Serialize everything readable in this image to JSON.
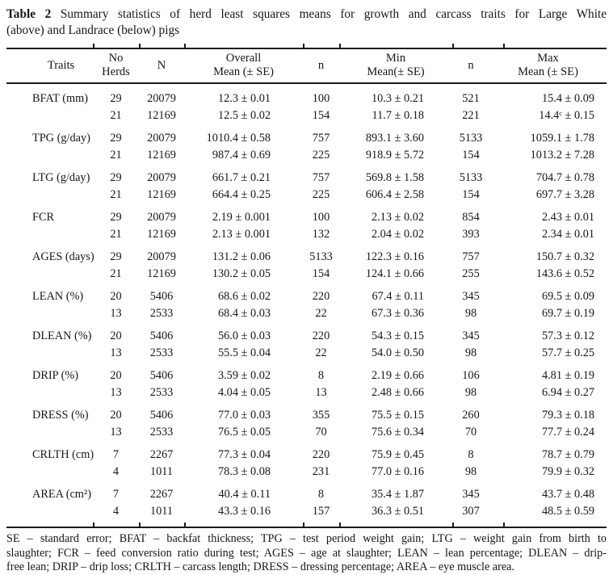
{
  "title": {
    "line1_bold": "Table 2",
    "line1_rest": " Summary statistics of herd least squares means for growth and carcass traits for Large White",
    "line2": "(above) and Landrace (below) pigs"
  },
  "table": {
    "headers": {
      "traits": "Traits",
      "no_herds_line1": "No",
      "no_herds_line2": "Herds",
      "n_total": "N",
      "overall_line1": "Overall",
      "overall_line2": "Mean (± SE)",
      "n_min": "n",
      "min_line1": "Min",
      "min_line2": "Mean(± SE)",
      "n_max": "n",
      "max_line1": "Max",
      "max_line2": "Mean (± SE)"
    },
    "blocks": [
      {
        "trait": "BFAT (mm)",
        "rows": [
          {
            "no_herds": "29",
            "n": "20079",
            "overall": "12.3 ± 0.01",
            "n_min": "100",
            "min": "10.3 ± 0.21",
            "n_max": "521",
            "max": "15.4 ± 0.09"
          },
          {
            "no_herds": "21",
            "n": "12169",
            "overall": "12.5 ± 0.02",
            "n_min": "154",
            "min": "11.7 ± 0.18",
            "n_max": "221",
            "max": "14.4ᶜ ± 0.15"
          }
        ]
      },
      {
        "trait": "TPG (g/day)",
        "rows": [
          {
            "no_herds": "29",
            "n": "20079",
            "overall": "1010.4 ± 0.58",
            "n_min": "757",
            "min": "893.1 ± 3.60",
            "n_max": "5133",
            "max": "1059.1 ± 1.78"
          },
          {
            "no_herds": "21",
            "n": "12169",
            "overall": "987.4 ± 0.69",
            "n_min": "225",
            "min": "918.9 ± 5.72",
            "n_max": "154",
            "max": "1013.2 ± 7.28"
          }
        ]
      },
      {
        "trait": "LTG (g/day)",
        "rows": [
          {
            "no_herds": "29",
            "n": "20079",
            "overall": "661.7 ± 0.21",
            "n_min": "757",
            "min": "569.8 ± 1.58",
            "n_max": "5133",
            "max": "704.7 ± 0.78"
          },
          {
            "no_herds": "21",
            "n": "12169",
            "overall": "664.4 ± 0.25",
            "n_min": "225",
            "min": "606.4 ± 2.58",
            "n_max": "154",
            "max": "697.7 ± 3.28"
          }
        ]
      },
      {
        "trait": "FCR",
        "rows": [
          {
            "no_herds": "29",
            "n": "20079",
            "overall": "2.19 ± 0.001",
            "n_min": "100",
            "min": "2.13 ± 0.02",
            "n_max": "854",
            "max": "2.43 ± 0.01"
          },
          {
            "no_herds": "21",
            "n": "12169",
            "overall": "2.13 ± 0.001",
            "n_min": "132",
            "min": "2.04 ± 0.02",
            "n_max": "393",
            "max": "2.34 ± 0.01"
          }
        ]
      },
      {
        "trait": "AGES (days)",
        "rows": [
          {
            "no_herds": "29",
            "n": "20079",
            "overall": "131.2 ± 0.06",
            "n_min": "5133",
            "min": "122.3 ± 0.16",
            "n_max": "757",
            "max": "150.7 ± 0.32"
          },
          {
            "no_herds": "21",
            "n": "12169",
            "overall": "130.2 ± 0.05",
            "n_min": "154",
            "min": "124.1 ± 0.66",
            "n_max": "255",
            "max": "143.6 ± 0.52"
          }
        ]
      },
      {
        "trait": "LEAN (%)",
        "rows": [
          {
            "no_herds": "20",
            "n": "5406",
            "overall": "68.6 ± 0.02",
            "n_min": "220",
            "min": "67.4 ± 0.11",
            "n_max": "345",
            "max": "69.5 ± 0.09"
          },
          {
            "no_herds": "13",
            "n": "2533",
            "overall": "68.4 ± 0.03",
            "n_min": "22",
            "min": "67.3 ± 0.36",
            "n_max": "98",
            "max": "69.7 ± 0.19"
          }
        ]
      },
      {
        "trait": "DLEAN (%)",
        "rows": [
          {
            "no_herds": "20",
            "n": "5406",
            "overall": "56.0 ± 0.03",
            "n_min": "220",
            "min": "54.3 ± 0.15",
            "n_max": "345",
            "max": "57.3 ± 0.12"
          },
          {
            "no_herds": "13",
            "n": "2533",
            "overall": "55.5 ± 0.04",
            "n_min": "22",
            "min": "54.0 ± 0.50",
            "n_max": "98",
            "max": "57.7 ± 0.25"
          }
        ]
      },
      {
        "trait": "DRIP (%)",
        "rows": [
          {
            "no_herds": "20",
            "n": "5406",
            "overall": "3.59 ± 0.02",
            "n_min": "8",
            "min": "2.19 ± 0.66",
            "n_max": "106",
            "max": "4.81 ± 0.19"
          },
          {
            "no_herds": "13",
            "n": "2533",
            "overall": "4.04 ± 0.05",
            "n_min": "13",
            "min": "2.48 ± 0.66",
            "n_max": "98",
            "max": "6.94 ± 0.27"
          }
        ]
      },
      {
        "trait": "DRESS (%)",
        "rows": [
          {
            "no_herds": "20",
            "n": "5406",
            "overall": "77.0 ± 0.03",
            "n_min": "355",
            "min": "75.5 ± 0.15",
            "n_max": "260",
            "max": "79.3 ± 0.18"
          },
          {
            "no_herds": "13",
            "n": "2533",
            "overall": "76.5 ± 0.05",
            "n_min": "70",
            "min": "75.6 ± 0.34",
            "n_max": "70",
            "max": "77.7 ± 0.24"
          }
        ]
      },
      {
        "trait": "CRLTH (cm)",
        "rows": [
          {
            "no_herds": "7",
            "n": "2267",
            "overall": "77.3 ± 0.04",
            "n_min": "220",
            "min": "75.9 ± 0.45",
            "n_max": "8",
            "max": "78.7 ± 0.79"
          },
          {
            "no_herds": "4",
            "n": "1011",
            "overall": "78.3 ± 0.08",
            "n_min": "231",
            "min": "77.0 ± 0.16",
            "n_max": "98",
            "max": "79.9 ± 0.32"
          }
        ]
      },
      {
        "trait": "AREA (cm²)",
        "rows": [
          {
            "no_herds": "7",
            "n": "2267",
            "overall": "40.4 ± 0.11",
            "n_min": "8",
            "min": "35.4 ± 1.87",
            "n_max": "345",
            "max": "43.7 ± 0.48"
          },
          {
            "no_herds": "4",
            "n": "1011",
            "overall": "43.3 ± 0.16",
            "n_min": "157",
            "min": "36.3 ± 0.51",
            "n_max": "307",
            "max": "48.5 ± 0.59"
          }
        ]
      }
    ]
  },
  "footnote": {
    "lines": [
      "SE – standard error; BFAT – backfat thickness; TPG – test period weight gain; LTG – weight gain from birth to",
      "slaughter; FCR – feed conversion ratio during test; AGES – age at slaughter; LEAN – lean percentage; DLEAN – drip-",
      "free lean; DRIP – drip loss; CRLTH – carcass length; DRESS – dressing percentage; AREA – eye muscle area."
    ]
  },
  "colors": {
    "text": "#171717",
    "rule": "#1c1c1c",
    "background": "#ffffff"
  }
}
